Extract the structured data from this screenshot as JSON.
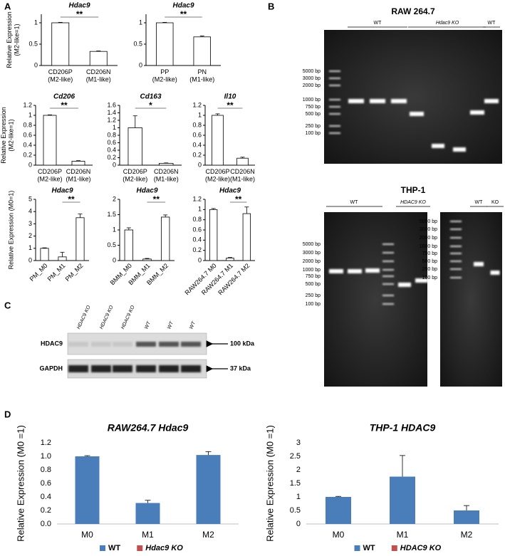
{
  "panel_labels": [
    "A",
    "B",
    "C",
    "D"
  ],
  "chart_data": [
    {
      "type": "bar",
      "title": "Hdac9",
      "y_label": "Relative Expression\n(M2-like=1)",
      "categories": [
        "CD206P\n(M2-like)",
        "CD206N\n(M1-like)"
      ],
      "values": [
        1,
        0.33
      ],
      "errors": [
        0.01,
        0.01
      ],
      "ylim": [
        0,
        1.2
      ],
      "yticks": [
        0,
        0.5,
        1
      ],
      "color": "#ffffff",
      "edge_color": "#000000",
      "annotations": [
        {
          "text": "**",
          "color": "#e0312c",
          "between": [
            0,
            1
          ]
        }
      ]
    },
    {
      "type": "bar",
      "title": "Hdac9",
      "categories": [
        "PP\n(M2-like)",
        "PN\n(M1-like)"
      ],
      "values": [
        1,
        0.67
      ],
      "errors": [
        0.01,
        0.02
      ],
      "ylim": [
        0,
        1.2
      ],
      "yticks": [
        0,
        0.5,
        1
      ],
      "color": "#ffffff",
      "edge_color": "#000000",
      "annotations": [
        {
          "text": "**",
          "color": "#e0312c",
          "between": [
            0,
            1
          ]
        }
      ]
    },
    {
      "type": "bar",
      "title": "Cd206",
      "y_label": "Relative Expression\n(M2-like=1)",
      "categories": [
        "CD206P\n(M2-like)",
        "CD206N\n(M1-like)"
      ],
      "values": [
        1,
        0.08
      ],
      "errors": [
        0.01,
        0.01
      ],
      "ylim": [
        0,
        1.2
      ],
      "yticks": [
        0,
        0.2,
        0.4,
        0.6,
        0.8,
        1,
        1.2
      ],
      "color": "#ffffff",
      "edge_color": "#000000",
      "annotations": [
        {
          "text": "**",
          "color": "#e0312c",
          "between": [
            0,
            1
          ]
        }
      ]
    },
    {
      "type": "bar",
      "title": "Cd163",
      "categories": [
        "CD206P\n(M2-like)",
        "CD206N\n(M1-like)"
      ],
      "values": [
        1,
        0.05
      ],
      "errors": [
        0.32,
        0.01
      ],
      "ylim": [
        0,
        1.6
      ],
      "yticks": [
        0,
        0.2,
        0.4,
        0.6,
        0.8,
        1,
        1.2,
        1.4,
        1.6
      ],
      "color": "#ffffff",
      "edge_color": "#000000",
      "annotations": [
        {
          "text": "*",
          "color": "#e0312c",
          "between": [
            0,
            1
          ]
        }
      ]
    },
    {
      "type": "bar",
      "title": "Il10",
      "categories": [
        "CD206P\n(M2-like)",
        "CD206N\n(M1-like)"
      ],
      "values": [
        1,
        0.14
      ],
      "errors": [
        0.03,
        0.02
      ],
      "ylim": [
        0,
        1.2
      ],
      "yticks": [
        0,
        0.2,
        0.4,
        0.6,
        0.8,
        1,
        1.2
      ],
      "color": "#ffffff",
      "edge_color": "#000000",
      "annotations": [
        {
          "text": "**",
          "color": "#e0312c",
          "between": [
            0,
            1
          ]
        }
      ]
    },
    {
      "type": "bar",
      "title": "Hdac9",
      "y_label": "Relative Expression (M0=1)",
      "categories": [
        "PM_M0",
        "PM_M1",
        "PM_M2"
      ],
      "values": [
        1,
        0.3,
        3.5
      ],
      "errors": [
        0.04,
        0.38,
        0.3
      ],
      "ylim": [
        0,
        5
      ],
      "yticks": [
        0,
        1,
        2,
        3,
        4,
        5
      ],
      "color": "#ffffff",
      "edge_color": "#000000",
      "annotations": [
        {
          "text": "**",
          "color": "#e0312c",
          "between": [
            1,
            2
          ]
        }
      ]
    },
    {
      "type": "bar",
      "title": "Hdac9",
      "categories": [
        "BMM_M0",
        "BMM_M1",
        "BMM_M2"
      ],
      "values": [
        1,
        0.05,
        1.42
      ],
      "errors": [
        0.07,
        0.02,
        0.07
      ],
      "ylim": [
        0,
        2
      ],
      "yticks": [
        0,
        0.5,
        1,
        1.5,
        2
      ],
      "color": "#ffffff",
      "edge_color": "#000000",
      "annotations": [
        {
          "text": "**",
          "color": "#e0312c",
          "between": [
            1,
            2
          ]
        }
      ]
    },
    {
      "type": "bar",
      "title": "Hdac9",
      "categories": [
        "RAW264.7 M0",
        "RAW264.7 M1",
        "RAW264.7 M2"
      ],
      "values": [
        1,
        0.05,
        0.92
      ],
      "errors": [
        0.02,
        0.01,
        0.13
      ],
      "ylim": [
        0,
        1.2
      ],
      "yticks": [
        0,
        0.2,
        0.4,
        0.6,
        0.8,
        1,
        1.2
      ],
      "color": "#ffffff",
      "edge_color": "#000000",
      "annotations": [
        {
          "text": "**",
          "color": "#e0312c",
          "between": [
            1,
            2
          ]
        }
      ]
    },
    {
      "type": "bar",
      "title": "RAW264.7 Hdac9",
      "y_label": "Relative Expression (M0 =1)",
      "categories": [
        "M0",
        "M1",
        "M2"
      ],
      "series": [
        {
          "name": "WT",
          "color": "#4a7ebb",
          "values": [
            1,
            0.31,
            1.02
          ],
          "errors": [
            0.01,
            0.04,
            0.05
          ]
        },
        {
          "name": "Hdac9 KO",
          "color": "#c0504d",
          "values": [
            null,
            null,
            null
          ]
        }
      ],
      "ylim": [
        0,
        1.2
      ],
      "yticks": [
        {
          "value": 0,
          "label": "0.0"
        },
        {
          "value": 0.2,
          "label": "0.2"
        },
        {
          "value": 0.4,
          "label": "0.4"
        },
        {
          "value": 0.6,
          "label": "0.6"
        },
        {
          "value": 0.8,
          "label": "0.8"
        },
        {
          "value": 1,
          "label": "1.0"
        },
        {
          "value": 1.2,
          "label": "1.2"
        }
      ],
      "legend": "bottom"
    },
    {
      "type": "bar",
      "title": "THP-1 HDAC9",
      "y_label": "Relative Expression (M0 =1)",
      "categories": [
        "M0",
        "M1",
        "M2"
      ],
      "series": [
        {
          "name": "WT",
          "color": "#4a7ebb",
          "values": [
            1,
            1.75,
            0.5
          ],
          "errors": [
            0.02,
            0.78,
            0.18
          ]
        },
        {
          "name": "HDAC9 KO",
          "color": "#c0504d",
          "values": [
            null,
            null,
            null
          ]
        }
      ],
      "ylim": [
        0,
        3
      ],
      "yticks": [
        0,
        0.5,
        1,
        1.5,
        2,
        2.5,
        3
      ],
      "legend": "bottom"
    }
  ],
  "gels": [
    {
      "title": "RAW 264.7",
      "lane_groups": [
        "WT",
        "Hdac9 KO",
        "WT"
      ],
      "ladder": [
        "5000 bp",
        "3000 bp",
        "2000 bp",
        "1000 bp",
        "750 bp",
        "500 bp",
        "250 bp",
        "100 bp"
      ]
    },
    {
      "title": "THP-1",
      "lane_groups": [
        "WT",
        "HDAC9 KO"
      ],
      "ladder": [
        "5000 bp",
        "3000 bp",
        "2000 bp",
        "1000 bp",
        "750 bp",
        "500 bp",
        "250 bp",
        "100 bp"
      ]
    },
    {
      "lane_groups": [
        "WT",
        "KO"
      ],
      "ladder": [
        "5000 bp",
        "3000 bp",
        "2000 bp",
        "1000 bp",
        "750 bp",
        "500 bp",
        "250 bp",
        "100 bp"
      ]
    }
  ],
  "western": {
    "lanes": [
      "HDAC9 KO",
      "HDAC9 KO",
      "HDAC9 KO",
      "WT",
      "WT",
      "WT"
    ],
    "rows": [
      {
        "name": "HDAC9",
        "size": "100 kDa"
      },
      {
        "name": "GAPDH",
        "size": "37 kDa"
      }
    ]
  }
}
